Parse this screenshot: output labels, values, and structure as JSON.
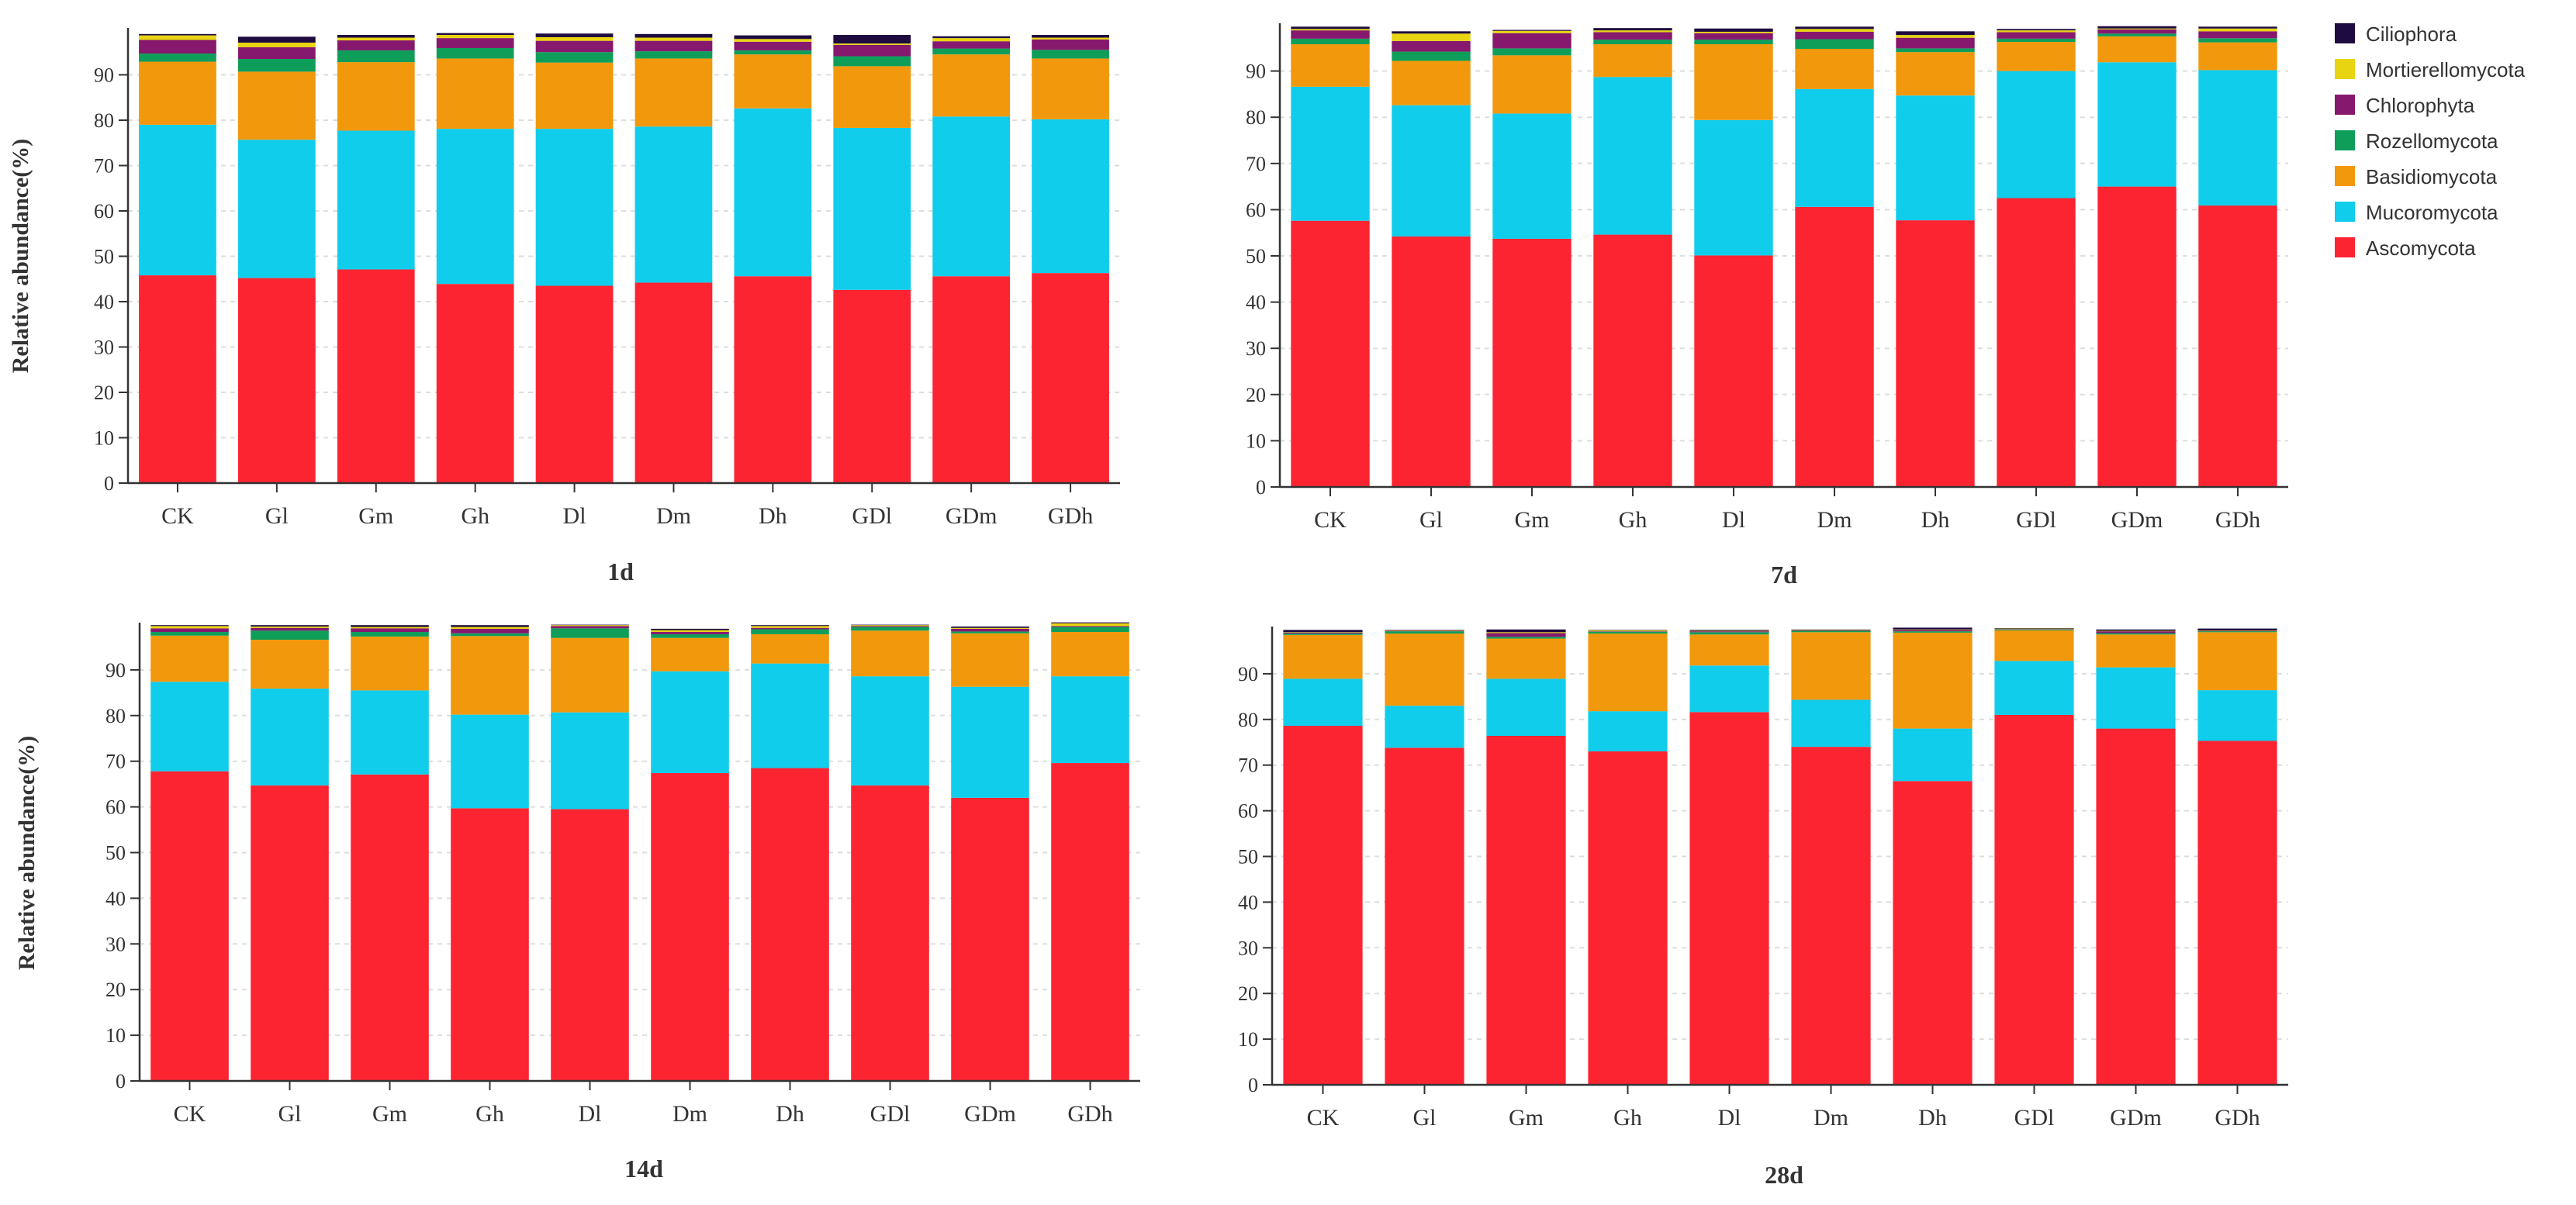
{
  "figure": {
    "ylabel": "Relative abundance(%)",
    "categories": [
      "CK",
      "Gl",
      "Gm",
      "Gh",
      "Dl",
      "Dm",
      "Dh",
      "GDl",
      "GDm",
      "GDh"
    ],
    "y_ticks": [
      0,
      10,
      20,
      30,
      40,
      50,
      60,
      70,
      80,
      90
    ],
    "legend_placement": "top-right",
    "phyla": [
      {
        "name": "Ciliophora",
        "color": "#1e0b3f"
      },
      {
        "name": "Mortierellomycota",
        "color": "#e8d410"
      },
      {
        "name": "Chlorophyta",
        "color": "#86196e"
      },
      {
        "name": "Rozellomycota",
        "color": "#0f9e5a"
      },
      {
        "name": "Basidiomycota",
        "color": "#f2980c"
      },
      {
        "name": "Mucoromycota",
        "color": "#10cdec"
      },
      {
        "name": "Ascomycota",
        "color": "#fd2432"
      }
    ]
  },
  "chart_data": [
    {
      "type": "bar",
      "stacked": true,
      "title": "1d",
      "xlabel": "",
      "ylabel": "Relative abundance(%)",
      "ylim": [
        0,
        100
      ],
      "categories": [
        "CK",
        "Gl",
        "Gm",
        "Gh",
        "Dl",
        "Dm",
        "Dh",
        "GDl",
        "GDm",
        "GDh"
      ],
      "series": [
        {
          "name": "Ascomycota",
          "values": [
            45.8,
            45.2,
            47.1,
            43.9,
            43.5,
            44.2,
            45.6,
            42.6,
            45.6,
            46.3
          ]
        },
        {
          "name": "Mucoromycota",
          "values": [
            33.2,
            30.5,
            30.6,
            34.2,
            34.6,
            34.4,
            37.0,
            35.7,
            35.2,
            33.9
          ]
        },
        {
          "name": "Basidiomycota",
          "values": [
            13.9,
            15.0,
            15.1,
            15.5,
            14.6,
            15.0,
            11.9,
            13.6,
            13.7,
            13.4
          ]
        },
        {
          "name": "Rozellomycota",
          "values": [
            1.8,
            2.8,
            2.6,
            2.3,
            2.3,
            1.6,
            0.9,
            2.2,
            1.3,
            1.9
          ]
        },
        {
          "name": "Chlorophyta",
          "values": [
            3.0,
            2.6,
            2.2,
            2.2,
            2.5,
            2.3,
            1.9,
            2.5,
            1.6,
            2.3
          ]
        },
        {
          "name": "Mortierellomycota",
          "values": [
            1.0,
            1.0,
            0.6,
            0.7,
            0.8,
            0.7,
            0.6,
            0.3,
            0.7,
            0.4
          ]
        },
        {
          "name": "Ciliophora",
          "values": [
            0.3,
            1.3,
            0.6,
            0.4,
            0.8,
            0.8,
            0.8,
            1.9,
            0.4,
            0.6
          ]
        }
      ]
    },
    {
      "type": "bar",
      "stacked": true,
      "title": "7d",
      "xlabel": "",
      "ylabel": "",
      "ylim": [
        0,
        100
      ],
      "categories": [
        "CK",
        "Gl",
        "Gm",
        "Gh",
        "Dl",
        "Dm",
        "Dh",
        "GDl",
        "GDm",
        "GDh"
      ],
      "series": [
        {
          "name": "Ascomycota",
          "values": [
            57.6,
            54.2,
            53.7,
            54.6,
            50.1,
            60.6,
            57.7,
            62.5,
            65.0,
            60.9
          ]
        },
        {
          "name": "Mucoromycota",
          "values": [
            29.0,
            28.4,
            27.1,
            34.1,
            29.3,
            25.5,
            27.0,
            27.5,
            26.9,
            29.3
          ]
        },
        {
          "name": "Basidiomycota",
          "values": [
            9.2,
            9.6,
            12.6,
            7.1,
            16.4,
            8.7,
            9.4,
            6.3,
            5.6,
            6.0
          ]
        },
        {
          "name": "Rozellomycota",
          "values": [
            1.2,
            2.0,
            1.5,
            1.0,
            1.0,
            2.1,
            0.8,
            0.7,
            0.6,
            0.9
          ]
        },
        {
          "name": "Chlorophyta",
          "values": [
            1.8,
            2.3,
            3.3,
            1.6,
            1.4,
            1.6,
            2.3,
            1.4,
            0.9,
            1.5
          ]
        },
        {
          "name": "Mortierellomycota",
          "values": [
            0.3,
            1.6,
            0.5,
            0.4,
            0.3,
            0.6,
            0.6,
            0.4,
            0.2,
            0.6
          ]
        },
        {
          "name": "Ciliophora",
          "values": [
            0.5,
            0.5,
            0.2,
            0.5,
            0.7,
            0.5,
            0.8,
            0.3,
            0.5,
            0.4
          ]
        }
      ]
    },
    {
      "type": "bar",
      "stacked": true,
      "title": "14d",
      "xlabel": "",
      "ylabel": "Relative abundance(%)",
      "ylim": [
        0,
        100
      ],
      "categories": [
        "CK",
        "Gl",
        "Gm",
        "Gh",
        "Dl",
        "Dm",
        "Dh",
        "GDl",
        "GDm",
        "GDh"
      ],
      "series": [
        {
          "name": "Ascomycota",
          "values": [
            67.8,
            64.7,
            67.1,
            59.7,
            59.5,
            67.4,
            68.5,
            64.7,
            62.0,
            69.6
          ]
        },
        {
          "name": "Mucoromycota",
          "values": [
            19.6,
            21.2,
            18.4,
            20.5,
            21.2,
            22.3,
            22.9,
            23.9,
            24.3,
            19.0
          ]
        },
        {
          "name": "Basidiomycota",
          "values": [
            10.1,
            10.7,
            11.8,
            17.2,
            16.3,
            7.3,
            6.4,
            10.0,
            11.7,
            9.7
          ]
        },
        {
          "name": "Rozellomycota",
          "values": [
            0.8,
            2.0,
            1.0,
            0.6,
            2.1,
            0.8,
            1.1,
            0.8,
            0.4,
            1.1
          ]
        },
        {
          "name": "Chlorophyta",
          "values": [
            0.8,
            0.6,
            0.8,
            1.0,
            0.5,
            0.5,
            0.3,
            0.2,
            0.6,
            0.2
          ]
        },
        {
          "name": "Mortierellomycota",
          "values": [
            0.5,
            0.3,
            0.3,
            0.4,
            0.2,
            0.4,
            0.4,
            0.2,
            0.2,
            0.6
          ]
        },
        {
          "name": "Ciliophora",
          "values": [
            0.2,
            0.3,
            0.4,
            0.4,
            0.1,
            0.3,
            0.2,
            0.1,
            0.3,
            0.2
          ]
        }
      ]
    },
    {
      "type": "bar",
      "stacked": true,
      "title": "28d",
      "xlabel": "",
      "ylabel": "",
      "ylim": [
        0,
        100
      ],
      "categories": [
        "CK",
        "Gl",
        "Gm",
        "Gh",
        "Dl",
        "Dm",
        "Dh",
        "GDl",
        "GDm",
        "GDh"
      ],
      "series": [
        {
          "name": "Ascomycota",
          "values": [
            78.6,
            73.8,
            76.4,
            73.0,
            81.6,
            74.0,
            66.5,
            81.0,
            78.0,
            75.3
          ]
        },
        {
          "name": "Mucoromycota",
          "values": [
            10.3,
            9.2,
            12.5,
            8.8,
            10.2,
            10.3,
            11.5,
            11.8,
            13.4,
            11.1
          ]
        },
        {
          "name": "Basidiomycota",
          "values": [
            9.6,
            15.8,
            8.8,
            17.0,
            6.8,
            14.8,
            21.0,
            6.7,
            7.2,
            12.7
          ]
        },
        {
          "name": "Rozellomycota",
          "values": [
            0.3,
            0.5,
            0.4,
            0.4,
            0.5,
            0.3,
            0.3,
            0.2,
            0.3,
            0.2
          ]
        },
        {
          "name": "Chlorophyta",
          "values": [
            0.2,
            0.1,
            0.8,
            0.1,
            0.2,
            0.1,
            0.3,
            0.1,
            0.4,
            0.1
          ]
        },
        {
          "name": "Mortierellomycota",
          "values": [
            0.1,
            0.1,
            0.2,
            0.2,
            0.1,
            0.1,
            0.1,
            0.1,
            0.1,
            0.1
          ]
        },
        {
          "name": "Ciliophora",
          "values": [
            0.5,
            0.1,
            0.6,
            0.1,
            0.2,
            0.1,
            0.4,
            0.1,
            0.3,
            0.4
          ]
        }
      ]
    }
  ]
}
